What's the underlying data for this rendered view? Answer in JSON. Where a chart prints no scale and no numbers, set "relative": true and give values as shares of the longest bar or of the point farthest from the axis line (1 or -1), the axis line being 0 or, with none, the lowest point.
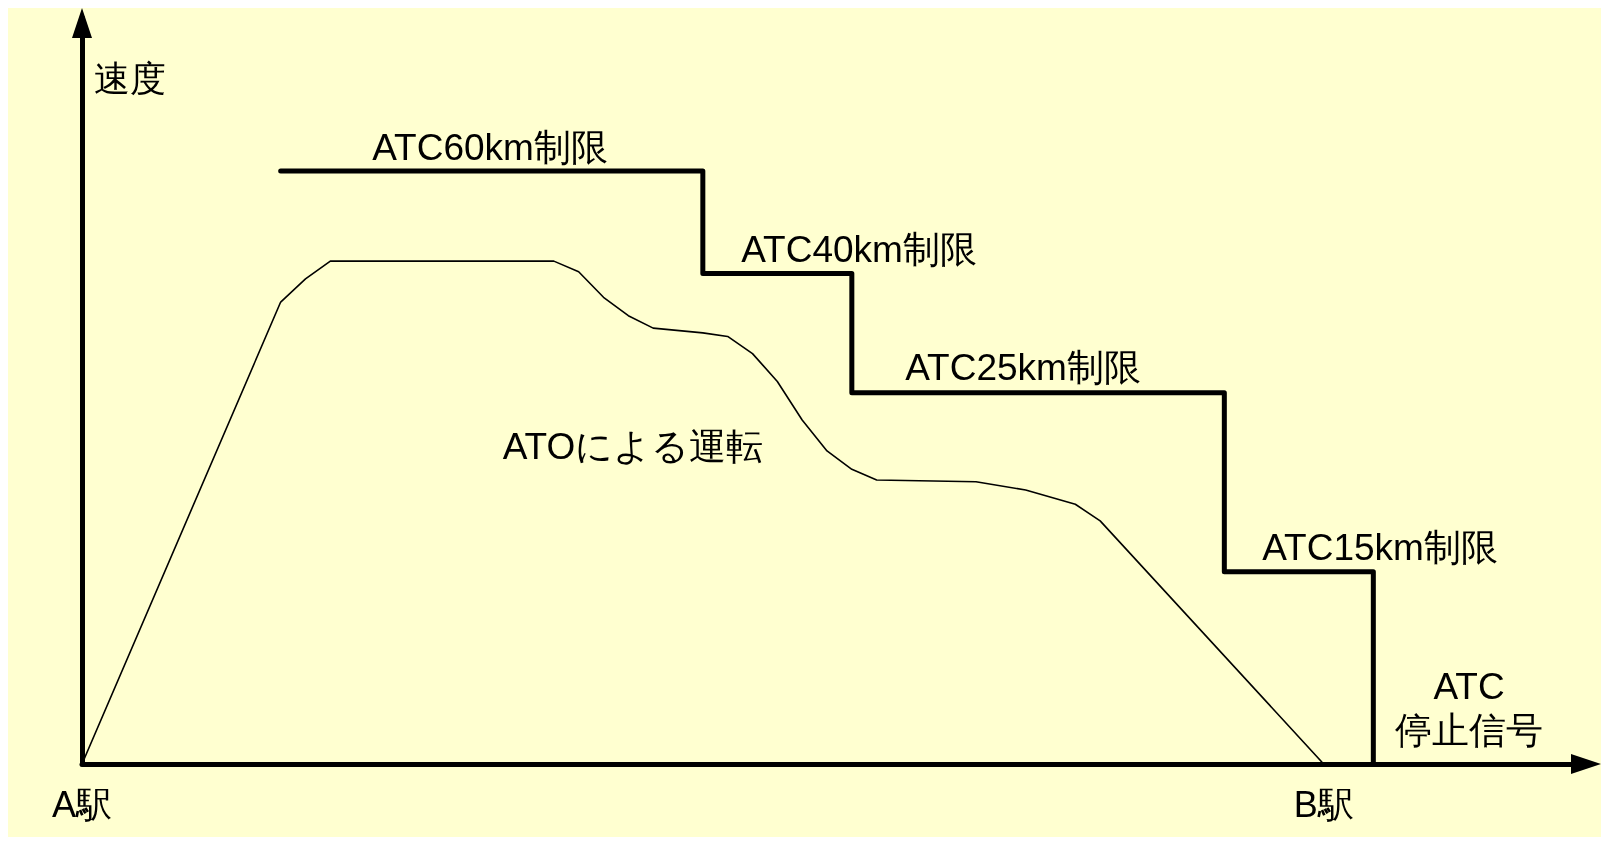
{
  "chart_data": {
    "type": "line",
    "relative": true,
    "ylabel": "速度",
    "categories": [
      "A駅",
      null,
      null,
      null,
      null,
      null,
      null,
      null,
      null,
      null,
      null,
      null,
      null,
      null,
      null,
      null,
      null,
      null,
      null,
      null,
      null,
      null,
      null,
      null,
      null,
      null,
      null,
      null,
      null,
      null,
      null,
      null,
      null,
      null,
      null,
      null,
      null,
      null,
      null,
      null,
      null,
      null,
      null,
      null,
      null,
      null,
      null,
      null,
      null,
      null,
      "B駅",
      null,
      null,
      null,
      null,
      null,
      null,
      null,
      null,
      null,
      null
    ],
    "series": [
      {
        "type": "step",
        "color": "#000000",
        "values": [
          null,
          null,
          null,
          null,
          null,
          null,
          null,
          null,
          1,
          null,
          null,
          null,
          null,
          null,
          null,
          null,
          null,
          null,
          null,
          null,
          null,
          null,
          null,
          null,
          null,
          0.827,
          null,
          null,
          null,
          null,
          null,
          0.626,
          null,
          null,
          null,
          null,
          null,
          null,
          null,
          null,
          null,
          null,
          null,
          null,
          null,
          null,
          0.324,
          null,
          null,
          null,
          null,
          null,
          0,
          null,
          null,
          null,
          null,
          null,
          null,
          null,
          null
        ]
      },
      {
        "color": "#000000",
        "values": [
          0,
          null,
          null,
          null,
          null,
          null,
          null,
          null,
          0.779,
          0.818,
          0.848,
          null,
          null,
          null,
          null,
          null,
          null,
          null,
          null,
          0.848,
          0.83,
          0.787,
          0.756,
          0.735,
          null,
          0.727,
          0.721,
          0.692,
          0.645,
          0.58,
          0.528,
          0.497,
          0.479,
          null,
          null,
          null,
          0.476,
          null,
          0.462,
          null,
          0.438,
          0.41,
          null,
          null,
          null,
          null,
          null,
          null,
          null,
          null,
          0,
          null,
          null,
          null,
          null,
          null,
          null,
          null,
          null,
          null,
          null
        ]
      }
    ],
    "annotations": [
      "ATC60km制限",
      "ATC40km制限",
      "ATC25km制限",
      "ATC15km制限",
      "ATC\n停止信号",
      "ATOによる運転"
    ],
    "line_style": "solid"
  }
}
